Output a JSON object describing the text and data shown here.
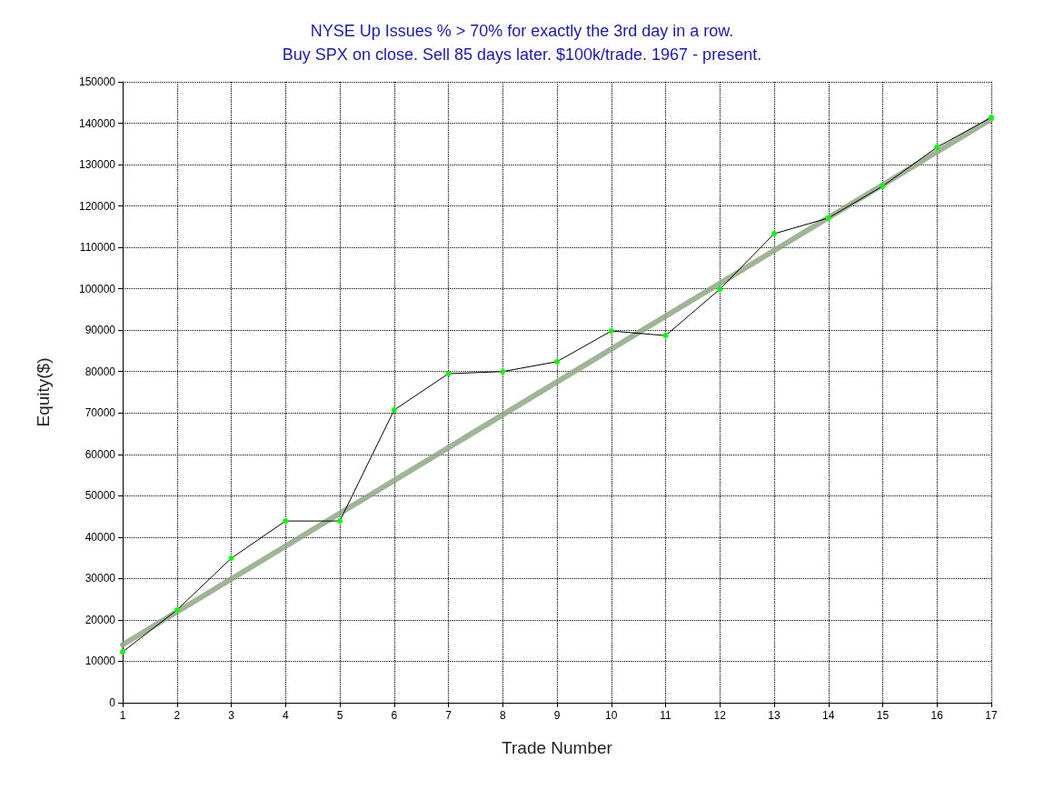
{
  "chart_data": {
    "type": "line",
    "title": "NYSE Up Issues % > 70% for exactly the 3rd day in a row.\nBuy SPX on close. Sell 85 days later. $100k/trade. 1967 - present.",
    "xlabel": "Trade Number",
    "ylabel": "Equity($)",
    "x": [
      1,
      2,
      3,
      4,
      5,
      6,
      7,
      8,
      9,
      10,
      11,
      12,
      13,
      14,
      15,
      16,
      17
    ],
    "series": [
      {
        "color": "#000000",
        "colors": [
          "#00ff00",
          "#00ff00",
          "#00ff00",
          "#00ff00",
          "#00ff00",
          "#00ff00",
          "#00ff00",
          "#00ff00",
          "#00ff00",
          "#00ff00",
          "#00ff00",
          "#00ff00",
          "#00ff00",
          "#00ff00",
          "#00ff00",
          "#00ff00",
          "#00ff00"
        ],
        "values": [
          12300,
          22400,
          34900,
          43900,
          43900,
          70700,
          79500,
          80000,
          82400,
          89800,
          88700,
          99900,
          113300,
          117100,
          124800,
          134200,
          141400
        ]
      },
      {
        "color": "#8fa882",
        "x": [
          1,
          17
        ],
        "values": [
          14000,
          141000
        ],
        "marker": "none"
      }
    ],
    "xlim": [
      1,
      17
    ],
    "xticks": [
      1,
      2,
      3,
      4,
      5,
      6,
      7,
      8,
      9,
      10,
      11,
      12,
      13,
      14,
      15,
      16,
      17
    ],
    "ylim": [
      0,
      150000
    ],
    "yticks": [
      0,
      10000,
      20000,
      30000,
      40000,
      50000,
      60000,
      70000,
      80000,
      90000,
      100000,
      110000,
      120000,
      130000,
      140000,
      150000
    ],
    "grid": true,
    "marker": "circle",
    "line_style": "solid"
  }
}
